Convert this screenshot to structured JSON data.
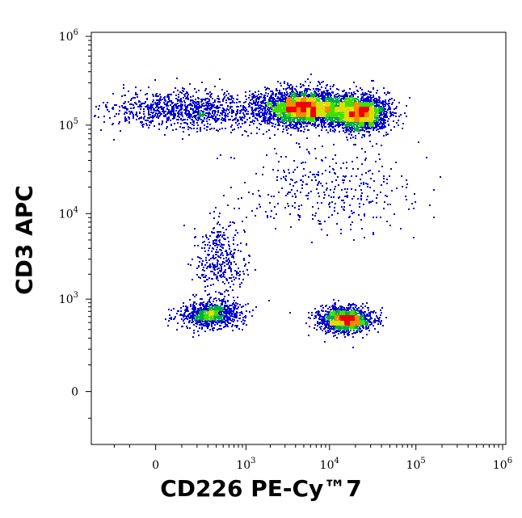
{
  "chart_data": {
    "type": "scatter",
    "subtype": "flow-cytometry-density-dot-plot",
    "xlabel": "CD226 PE-Cy™7",
    "ylabel": "CD3 APC",
    "x_scale": "biexponential",
    "y_scale": "biexponential",
    "xlim": [
      -300,
      1000000
    ],
    "ylim": [
      -200,
      1000000
    ],
    "x_ticks": [
      {
        "base": "0",
        "exp": "",
        "value": 0
      },
      {
        "base": "10",
        "exp": "3",
        "value": 1000
      },
      {
        "base": "10",
        "exp": "4",
        "value": 10000
      },
      {
        "base": "10",
        "exp": "5",
        "value": 100000
      },
      {
        "base": "10",
        "exp": "6",
        "value": 1000000
      }
    ],
    "y_ticks": [
      {
        "base": "0",
        "exp": "",
        "value": 0
      },
      {
        "base": "10",
        "exp": "3",
        "value": 1000
      },
      {
        "base": "10",
        "exp": "4",
        "value": 10000
      },
      {
        "base": "10",
        "exp": "5",
        "value": 100000
      },
      {
        "base": "10",
        "exp": "6",
        "value": 1000000
      }
    ],
    "density_colors": [
      "#0000cc",
      "#00aa44",
      "#44dd00",
      "#dddd00",
      "#ff8800",
      "#ee0000"
    ],
    "grid": false,
    "legend": "none",
    "populations": [
      {
        "x_center": 150,
        "x_spread_decades": 0.9,
        "y_center": 150000,
        "y_spread_decades": 0.22,
        "share": 0.12
      },
      {
        "x_center": 5000,
        "x_spread_decades": 0.5,
        "y_center": 160000,
        "y_spread_decades": 0.2,
        "share": 0.33
      },
      {
        "x_center": 22000,
        "x_spread_decades": 0.35,
        "y_center": 140000,
        "y_spread_decades": 0.2,
        "share": 0.22
      },
      {
        "x_center": 320,
        "x_spread_decades": 0.35,
        "y_center": 650,
        "y_spread_decades": 0.15,
        "share": 0.1
      },
      {
        "x_center": 15000,
        "x_spread_decades": 0.3,
        "y_center": 560,
        "y_spread_decades": 0.14,
        "share": 0.15
      },
      {
        "x_center": 450,
        "x_spread_decades": 0.3,
        "y_center": 3000,
        "y_spread_decades": 0.4,
        "share": 0.04
      },
      {
        "x_center": 9000,
        "x_spread_decades": 1.0,
        "y_center": 20000,
        "y_spread_decades": 0.5,
        "share": 0.04
      }
    ],
    "event_count_shown": 9000
  }
}
